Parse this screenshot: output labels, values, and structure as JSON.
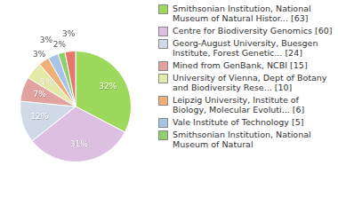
{
  "chart_data": {
    "type": "pie",
    "categories": [
      "Smithsonian Institution, National Museum of Natural Histor... [63]",
      "Centre for Biodiversity Genomics [60]",
      "Georg-August University, Buesgen Institute, Forest Genetic... [24]",
      "Mined from GenBank, NCBI [15]",
      "University of Vienna, Dept of Botany and Biodiversity Rese... [10]",
      "Leipzig University, Institute of Biology, Molecular Evoluti... [6]",
      "Vale Institute of Technology [5]",
      "Smithsonian Institution, National Museum of Natural",
      null
    ],
    "values": [
      32,
      31,
      12,
      7,
      5,
      3,
      3,
      2,
      3
    ],
    "value_labels": [
      "32%",
      "31%",
      "12%",
      "7%",
      "5%",
      "3%",
      "3%",
      "2%",
      "3%"
    ],
    "colors": [
      "#9dd95c",
      "#dcbfe1",
      "#cfdae6",
      "#e0a3a0",
      "#e3eaa8",
      "#f0ae78",
      "#a9c3e6",
      "#8fcf6c",
      "#e3776b"
    ],
    "legend": "right",
    "data_labels": true
  }
}
